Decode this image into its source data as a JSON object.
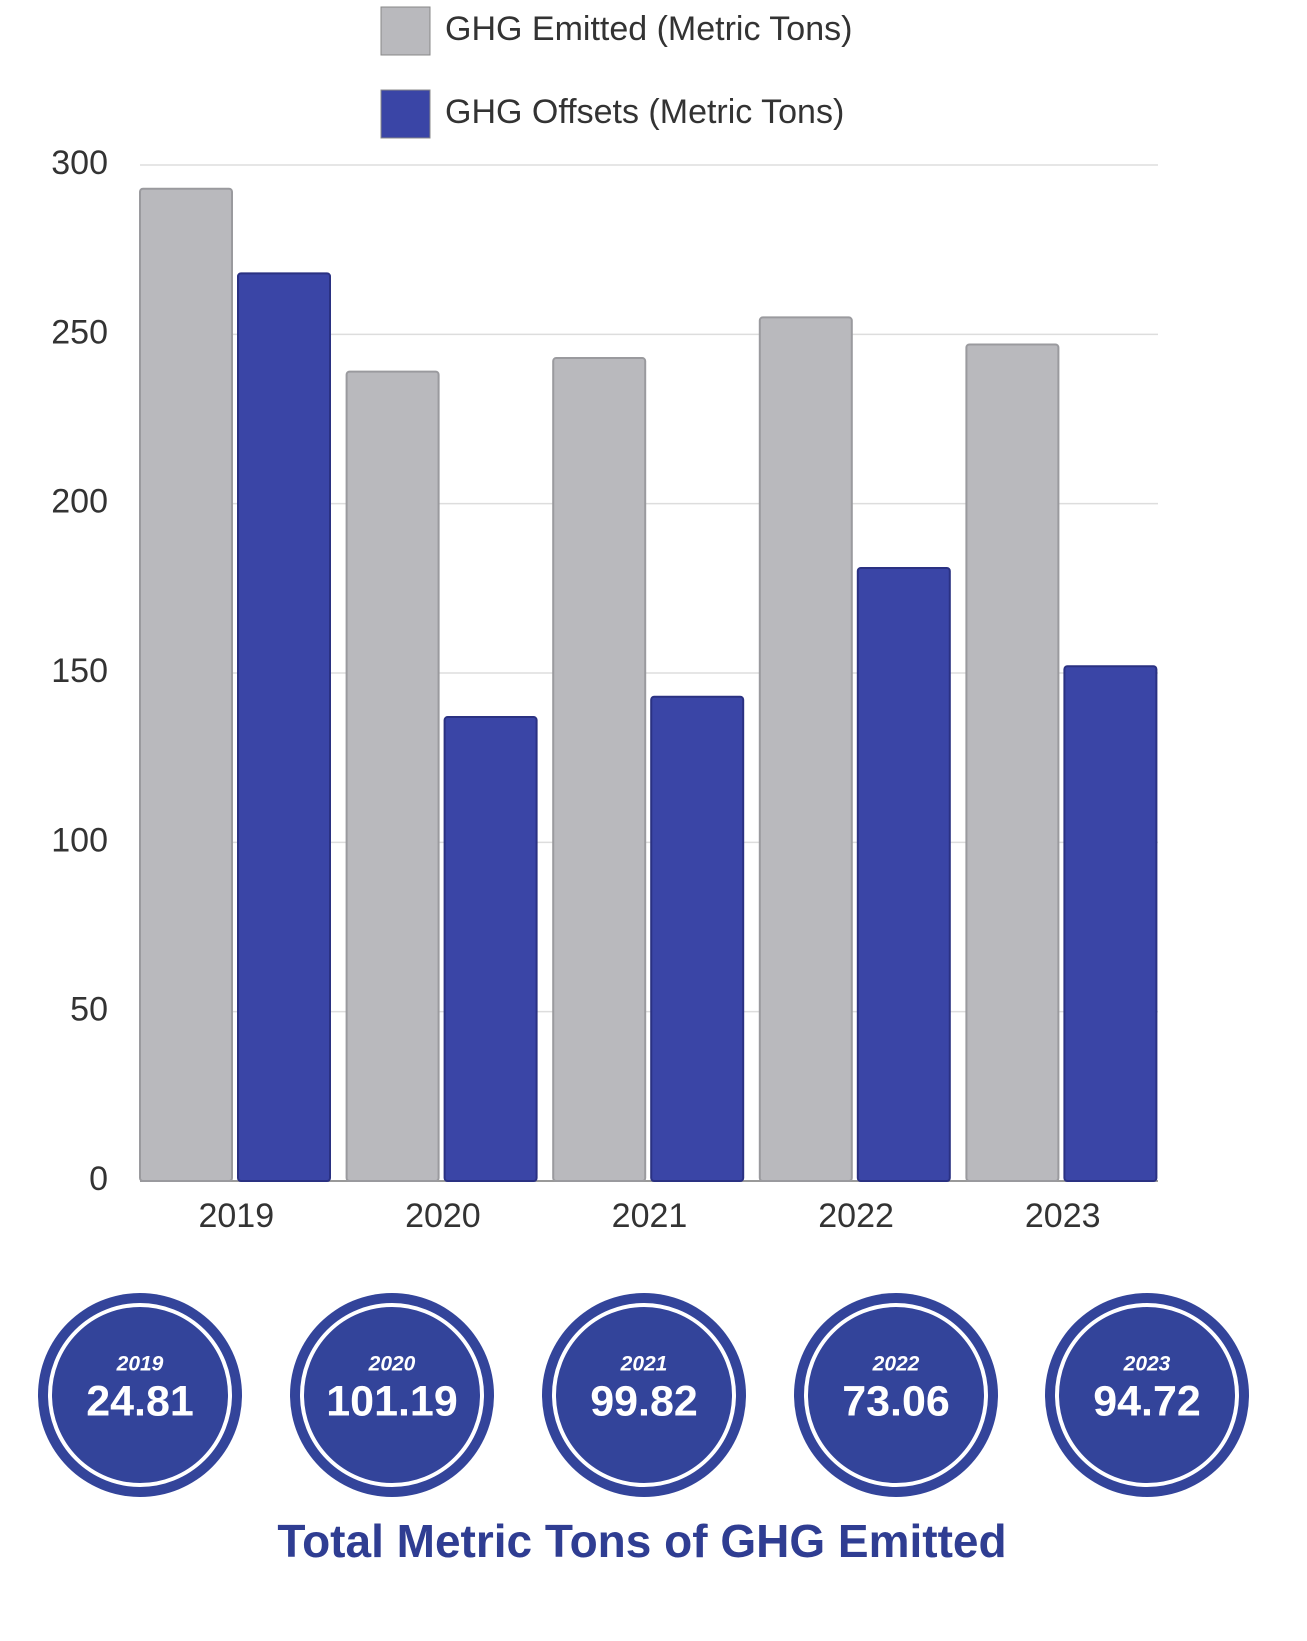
{
  "chart_data": {
    "type": "bar",
    "categories": [
      "2019",
      "2020",
      "2021",
      "2022",
      "2023"
    ],
    "series": [
      {
        "name": "GHG Emitted (Metric Tons)",
        "color": "#b9b9bd",
        "values": [
          293,
          239,
          243,
          255,
          247
        ]
      },
      {
        "name": "GHG Offsets (Metric Tons)",
        "color": "#3a45a6",
        "values": [
          268,
          137,
          143,
          181,
          152
        ]
      }
    ],
    "ylim": [
      0,
      300
    ],
    "yticks": [
      0,
      50,
      100,
      150,
      200,
      250,
      300
    ],
    "grid": true
  },
  "summary": {
    "title": "Total Metric Tons of GHG Emitted",
    "items": [
      {
        "year": "2019",
        "value": 24.81
      },
      {
        "year": "2020",
        "value": 101.19
      },
      {
        "year": "2021",
        "value": 99.82
      },
      {
        "year": "2022",
        "value": 73.06
      },
      {
        "year": "2023",
        "value": 94.72
      }
    ]
  }
}
